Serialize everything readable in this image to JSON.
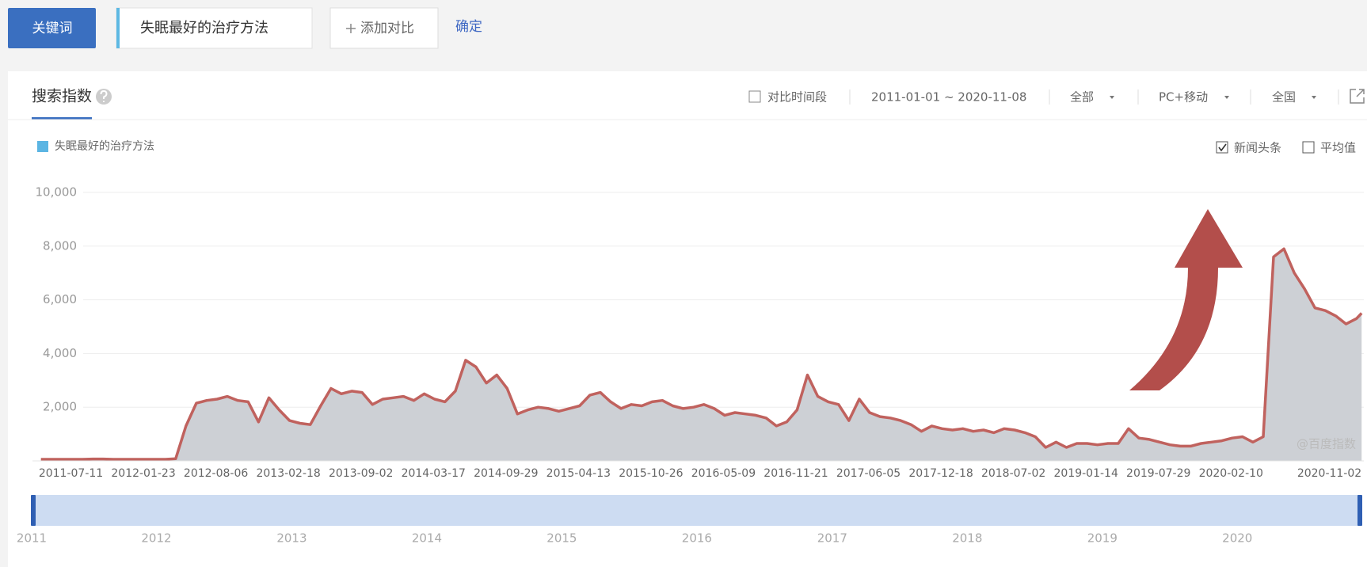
{
  "toolbar": {
    "keyword_tab": "关键词",
    "keyword": "失眠最好的治疗方法",
    "add_compare": "添加对比",
    "confirm": "确定"
  },
  "panel": {
    "tab": "搜索指数",
    "compare_period": "对比时间段",
    "date_range": "2011-01-01 ~ 2020-11-08",
    "source": "全部",
    "device": "PC+移动",
    "region": "全国",
    "news": "新闻头条",
    "news_checked": true,
    "average": "平均值",
    "average_checked": false,
    "watermark": "@百度指数",
    "navigator_years": [
      "2011",
      "2012",
      "2013",
      "2014",
      "2015",
      "2016",
      "2017",
      "2018",
      "2019",
      "2020"
    ]
  },
  "chart_data": {
    "type": "area",
    "legend_color": "#5bb5e3",
    "fill": "#cdd0d5",
    "grid": true,
    "xlim": [
      "2011-01-01",
      "2020-11-08"
    ],
    "xticks": [
      "2011-07-11",
      "2012-01-23",
      "2012-08-06",
      "2013-02-18",
      "2013-09-02",
      "2014-03-17",
      "2014-09-29",
      "2015-04-13",
      "2015-10-26",
      "2016-05-09",
      "2016-11-21",
      "2017-06-05",
      "2017-12-18",
      "2018-07-02",
      "2019-01-14",
      "2019-07-29",
      "2020-02-10",
      "2020-11-02"
    ],
    "ylim": [
      0,
      10000
    ],
    "yticks": [
      {
        "value": 2000,
        "label": "2,000"
      },
      {
        "value": 4000,
        "label": "4,000"
      },
      {
        "value": 6000,
        "label": "6,000"
      },
      {
        "value": 8000,
        "label": "8,000"
      },
      {
        "value": 10000,
        "label": "10,000"
      }
    ],
    "x": [
      "2011-01-24",
      "2011-02-21",
      "2011-03-21",
      "2011-04-18",
      "2011-05-16",
      "2011-06-13",
      "2011-07-11",
      "2011-08-08",
      "2011-09-05",
      "2011-10-03",
      "2011-10-31",
      "2011-11-28",
      "2011-12-26",
      "2012-01-23",
      "2012-02-20",
      "2012-03-19",
      "2012-04-16",
      "2012-05-14",
      "2012-06-11",
      "2012-07-09",
      "2012-08-06",
      "2012-09-03",
      "2012-10-01",
      "2012-10-29",
      "2012-11-26",
      "2012-12-24",
      "2013-01-21",
      "2013-02-18",
      "2013-03-18",
      "2013-04-15",
      "2013-05-13",
      "2013-06-10",
      "2013-07-08",
      "2013-08-05",
      "2013-09-02",
      "2013-09-30",
      "2013-10-28",
      "2013-11-25",
      "2013-12-23",
      "2014-01-20",
      "2014-02-17",
      "2014-03-17",
      "2014-04-14",
      "2014-05-12",
      "2014-06-09",
      "2014-07-07",
      "2014-08-04",
      "2014-09-01",
      "2014-09-29",
      "2014-10-27",
      "2014-11-24",
      "2014-12-22",
      "2015-01-19",
      "2015-02-16",
      "2015-03-16",
      "2015-04-13",
      "2015-05-11",
      "2015-06-08",
      "2015-07-06",
      "2015-08-03",
      "2015-08-31",
      "2015-09-28",
      "2015-10-26",
      "2015-11-23",
      "2015-12-21",
      "2016-01-18",
      "2016-02-15",
      "2016-03-14",
      "2016-04-11",
      "2016-05-09",
      "2016-06-06",
      "2016-07-04",
      "2016-08-01",
      "2016-08-29",
      "2016-09-26",
      "2016-10-24",
      "2016-11-21",
      "2016-12-19",
      "2017-01-16",
      "2017-02-13",
      "2017-03-13",
      "2017-04-10",
      "2017-05-08",
      "2017-06-05",
      "2017-07-03",
      "2017-07-31",
      "2017-08-28",
      "2017-09-25",
      "2017-10-23",
      "2017-11-20",
      "2017-12-18",
      "2018-01-15",
      "2018-02-12",
      "2018-03-12",
      "2018-04-09",
      "2018-05-07",
      "2018-06-04",
      "2018-07-02",
      "2018-07-30",
      "2018-08-27",
      "2018-09-24",
      "2018-10-22",
      "2018-11-19",
      "2018-12-17",
      "2019-01-14",
      "2019-02-11",
      "2019-03-11",
      "2019-04-08",
      "2019-05-06",
      "2019-06-03",
      "2019-07-01",
      "2019-07-29",
      "2019-08-26",
      "2019-09-23",
      "2019-10-21",
      "2019-11-18",
      "2019-12-16",
      "2020-01-13",
      "2020-02-10",
      "2020-03-09",
      "2020-04-06",
      "2020-05-04",
      "2020-06-01",
      "2020-06-29",
      "2020-07-27",
      "2020-08-24",
      "2020-09-21",
      "2020-10-19",
      "2020-11-02"
    ],
    "series": [
      {
        "name": "失眠最好的治疗方法",
        "color": "#c0625e",
        "values": [
          60,
          60,
          60,
          60,
          60,
          70,
          70,
          60,
          60,
          60,
          60,
          60,
          60,
          80,
          1300,
          2150,
          2250,
          2300,
          2400,
          2250,
          2200,
          1450,
          2350,
          1900,
          1500,
          1400,
          1350,
          2050,
          2700,
          2500,
          2600,
          2550,
          2100,
          2300,
          2350,
          2400,
          2250,
          2500,
          2300,
          2200,
          2600,
          3750,
          3500,
          2900,
          3200,
          2700,
          1750,
          1900,
          2000,
          1950,
          1850,
          1950,
          2050,
          2450,
          2550,
          2200,
          1950,
          2100,
          2050,
          2200,
          2250,
          2050,
          1950,
          2000,
          2100,
          1950,
          1700,
          1800,
          1750,
          1700,
          1600,
          1300,
          1450,
          1900,
          3200,
          2400,
          2200,
          2100,
          1500,
          2300,
          1800,
          1650,
          1600,
          1500,
          1350,
          1100,
          1300,
          1200,
          1150,
          1200,
          1100,
          1150,
          1050,
          1200,
          1150,
          1050,
          900,
          500,
          700,
          500,
          650,
          650,
          600,
          650,
          650,
          1200,
          850,
          800,
          700,
          600,
          550,
          550,
          650,
          700,
          750,
          850,
          900,
          700,
          900,
          7600,
          7900,
          7000,
          6400,
          5700,
          5600,
          5400,
          5100,
          5300,
          5500
        ]
      }
    ]
  }
}
